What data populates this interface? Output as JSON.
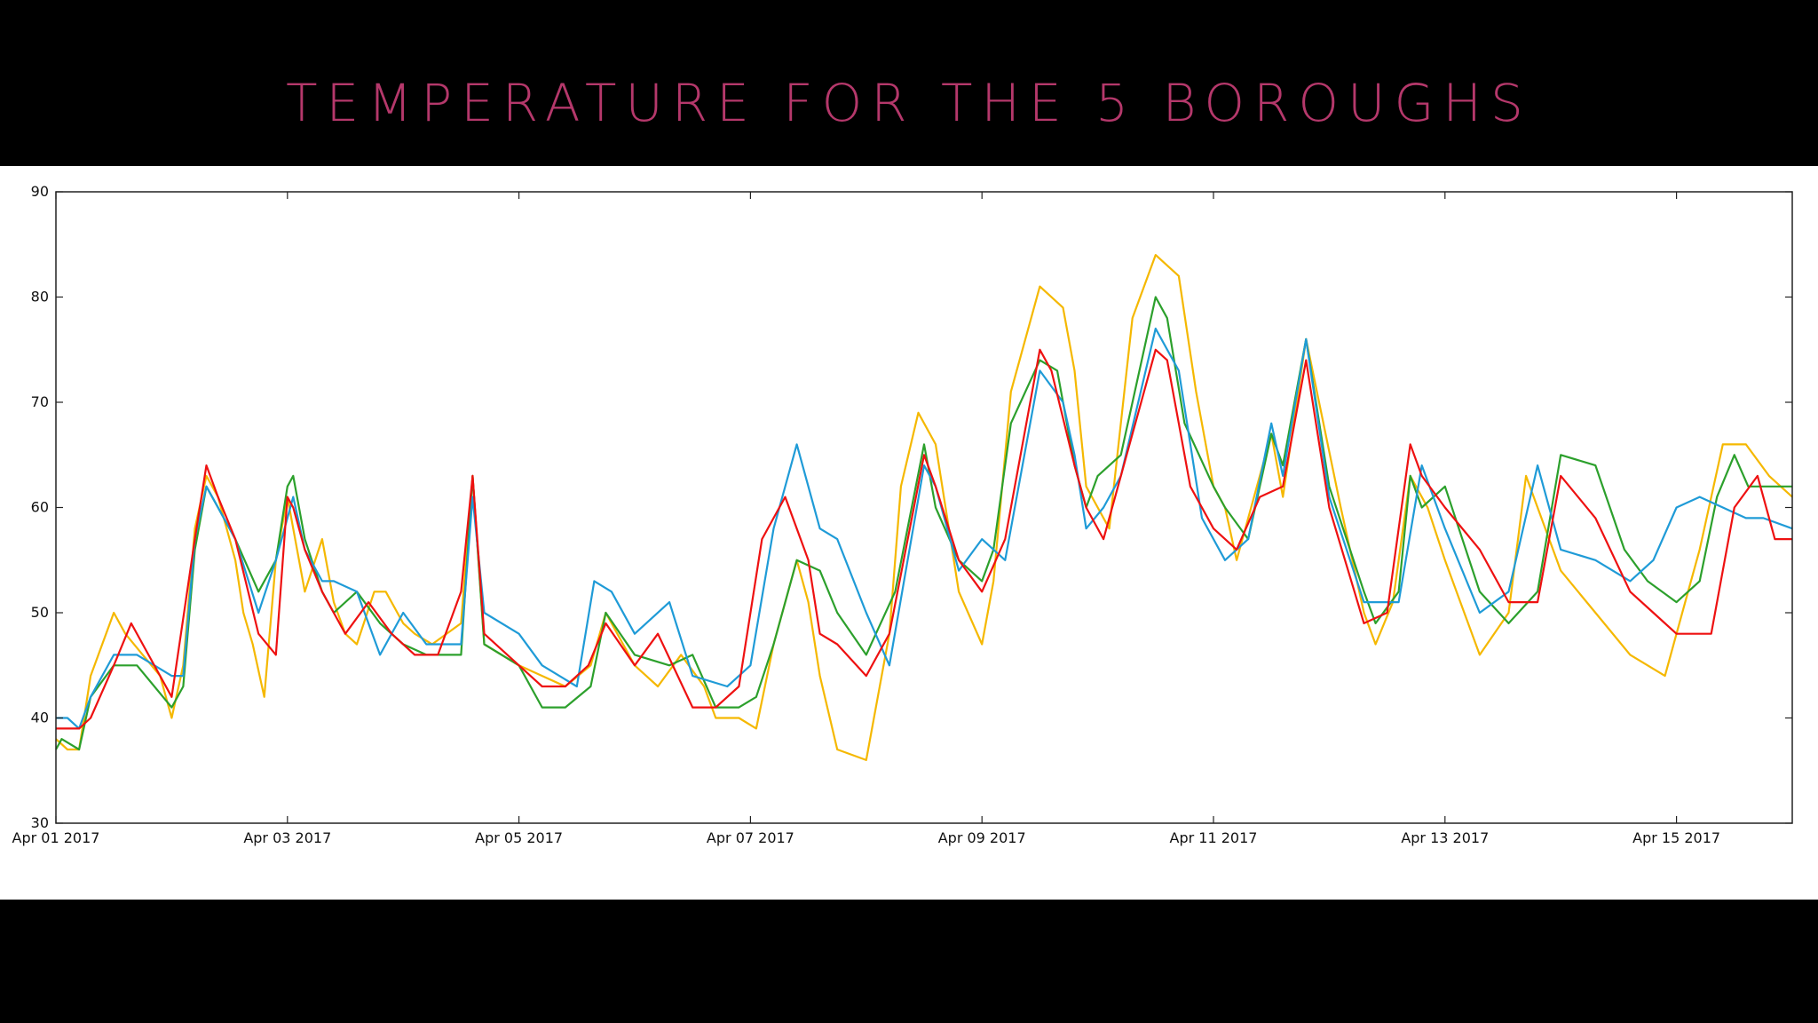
{
  "slide": {
    "title": "TEMPERATURE FOR THE 5 BOROUGHS",
    "title_color": "#b5386b",
    "background": "#000000",
    "panel_background": "#ffffff"
  },
  "chart_data": {
    "type": "line",
    "title": "TEMPERATURE FOR THE 5 BOROUGHS",
    "xlabel": "",
    "ylabel": "",
    "x_unit": "days since Apr 01 2017",
    "xlim": [
      0,
      15
    ],
    "ylim": [
      30,
      90
    ],
    "grid": false,
    "legend": "none",
    "yticks": [
      30,
      40,
      50,
      60,
      70,
      80,
      90
    ],
    "xticks": [
      {
        "x": 0,
        "label": "Apr 01 2017"
      },
      {
        "x": 2,
        "label": "Apr 03 2017"
      },
      {
        "x": 4,
        "label": "Apr 05 2017"
      },
      {
        "x": 6,
        "label": "Apr 07 2017"
      },
      {
        "x": 8,
        "label": "Apr 09 2017"
      },
      {
        "x": 10,
        "label": "Apr 11 2017"
      },
      {
        "x": 12,
        "label": "Apr 13 2017"
      },
      {
        "x": 14,
        "label": "Apr 15 2017"
      }
    ],
    "series": [
      {
        "name": "series-yellow",
        "color": "#f5b800",
        "x": [
          0,
          0.1,
          0.2,
          0.3,
          0.5,
          0.6,
          0.75,
          0.9,
          1.0,
          1.1,
          1.2,
          1.3,
          1.4,
          1.55,
          1.62,
          1.7,
          1.8,
          1.9,
          2.0,
          2.05,
          2.15,
          2.3,
          2.4,
          2.5,
          2.6,
          2.75,
          2.85,
          3.0,
          3.1,
          3.25,
          3.5,
          3.6,
          3.7,
          4.0,
          4.2,
          4.4,
          4.62,
          4.75,
          5.0,
          5.2,
          5.4,
          5.6,
          5.7,
          5.9,
          6.05,
          6.2,
          6.4,
          6.5,
          6.6,
          6.75,
          7.0,
          7.2,
          7.3,
          7.45,
          7.6,
          7.8,
          8.0,
          8.1,
          8.25,
          8.5,
          8.7,
          8.8,
          8.9,
          9.0,
          9.1,
          9.3,
          9.5,
          9.7,
          9.85,
          10.0,
          10.1,
          10.2,
          10.5,
          10.6,
          10.8,
          11.1,
          11.3,
          11.4,
          11.55,
          11.7,
          11.75,
          11.85,
          12.0,
          12.3,
          12.55,
          12.7,
          12.8,
          13.0,
          13.3,
          13.6,
          13.9,
          14.1,
          14.2,
          14.4,
          14.6,
          14.8,
          14.9,
          15.0
        ],
        "values": [
          38,
          37,
          37,
          44,
          50,
          48,
          46,
          44,
          40,
          45,
          58,
          63,
          61,
          55,
          50,
          47,
          42,
          55,
          61,
          58,
          52,
          57,
          51,
          48,
          47,
          52,
          52,
          49,
          48,
          47,
          49,
          63,
          47,
          45,
          44,
          43,
          45,
          50,
          45,
          43,
          46,
          43,
          40,
          40,
          39,
          47,
          55,
          51,
          44,
          37,
          36,
          48,
          62,
          69,
          66,
          52,
          47,
          53,
          71,
          81,
          79,
          73,
          62,
          60,
          58,
          78,
          84,
          82,
          71,
          62,
          60,
          55,
          67,
          61,
          76,
          60,
          50,
          47,
          51,
          63,
          62,
          60,
          55,
          46,
          50,
          63,
          60,
          54,
          50,
          46,
          44,
          52,
          56,
          66,
          66,
          63,
          62,
          61
        ]
      },
      {
        "name": "series-green",
        "color": "#2ca02c",
        "x": [
          0,
          0.05,
          0.2,
          0.3,
          0.5,
          0.7,
          1.0,
          1.1,
          1.2,
          1.3,
          1.4,
          1.55,
          1.75,
          1.9,
          2.0,
          2.05,
          2.15,
          2.3,
          2.4,
          2.6,
          2.8,
          3.0,
          3.2,
          3.5,
          3.6,
          3.7,
          4.0,
          4.2,
          4.4,
          4.62,
          4.75,
          5.0,
          5.3,
          5.5,
          5.7,
          5.9,
          6.05,
          6.2,
          6.4,
          6.6,
          6.75,
          7.0,
          7.25,
          7.5,
          7.6,
          7.8,
          8.0,
          8.1,
          8.25,
          8.5,
          8.65,
          8.8,
          8.9,
          9.0,
          9.2,
          9.5,
          9.6,
          9.75,
          10.0,
          10.1,
          10.3,
          10.5,
          10.6,
          10.8,
          11.0,
          11.3,
          11.4,
          11.6,
          11.7,
          11.8,
          12.0,
          12.3,
          12.55,
          12.8,
          13.0,
          13.3,
          13.55,
          13.75,
          14.0,
          14.2,
          14.35,
          14.5,
          14.62,
          14.75,
          15.0
        ],
        "values": [
          37,
          38,
          37,
          42,
          45,
          45,
          41,
          43,
          56,
          62,
          60,
          57,
          52,
          55,
          62,
          63,
          57,
          52,
          50,
          52,
          49,
          47,
          46,
          46,
          63,
          47,
          45,
          41,
          41,
          43,
          50,
          46,
          45,
          46,
          41,
          41,
          42,
          47,
          55,
          54,
          50,
          46,
          52,
          66,
          60,
          55,
          53,
          56,
          68,
          74,
          73,
          64,
          60,
          63,
          65,
          80,
          78,
          68,
          62,
          60,
          57,
          67,
          64,
          76,
          62,
          52,
          49,
          52,
          63,
          60,
          62,
          52,
          49,
          52,
          65,
          64,
          56,
          53,
          51,
          53,
          61,
          65,
          62,
          62,
          62
        ]
      },
      {
        "name": "series-blue",
        "color": "#1f9bd7",
        "x": [
          0,
          0.1,
          0.2,
          0.3,
          0.5,
          0.7,
          1.0,
          1.1,
          1.2,
          1.3,
          1.4,
          1.55,
          1.75,
          1.9,
          2.05,
          2.15,
          2.3,
          2.4,
          2.6,
          2.8,
          3.0,
          3.2,
          3.5,
          3.6,
          3.7,
          4.0,
          4.2,
          4.5,
          4.65,
          4.8,
          5.0,
          5.3,
          5.5,
          5.8,
          6.0,
          6.2,
          6.4,
          6.6,
          6.75,
          7.0,
          7.2,
          7.5,
          7.6,
          7.8,
          8.0,
          8.2,
          8.5,
          8.7,
          8.8,
          8.9,
          9.05,
          9.2,
          9.5,
          9.7,
          9.9,
          10.1,
          10.3,
          10.5,
          10.6,
          10.8,
          11.0,
          11.3,
          11.6,
          11.8,
          12.0,
          12.3,
          12.55,
          12.8,
          13.0,
          13.3,
          13.6,
          13.8,
          14.0,
          14.2,
          14.4,
          14.6,
          14.75,
          15.0
        ],
        "values": [
          40,
          40,
          39,
          42,
          46,
          46,
          44,
          44,
          57,
          62,
          60,
          57,
          50,
          55,
          61,
          56,
          53,
          53,
          52,
          46,
          50,
          47,
          47,
          61,
          50,
          48,
          45,
          43,
          53,
          52,
          48,
          51,
          44,
          43,
          45,
          58,
          66,
          58,
          57,
          50,
          45,
          64,
          62,
          54,
          57,
          55,
          73,
          70,
          65,
          58,
          60,
          63,
          77,
          73,
          59,
          55,
          57,
          68,
          63,
          76,
          61,
          51,
          51,
          64,
          58,
          50,
          52,
          64,
          56,
          55,
          53,
          55,
          60,
          61,
          60,
          59,
          59,
          58
        ]
      },
      {
        "name": "series-red",
        "color": "#ee1111",
        "x": [
          0,
          0.2,
          0.3,
          0.5,
          0.65,
          0.8,
          1.0,
          1.2,
          1.3,
          1.4,
          1.55,
          1.75,
          1.9,
          2.0,
          2.05,
          2.15,
          2.3,
          2.5,
          2.7,
          2.9,
          3.1,
          3.3,
          3.5,
          3.6,
          3.7,
          4.0,
          4.2,
          4.4,
          4.6,
          4.75,
          5.0,
          5.2,
          5.5,
          5.7,
          5.9,
          6.1,
          6.3,
          6.5,
          6.6,
          6.75,
          7.0,
          7.2,
          7.5,
          7.6,
          7.8,
          8.0,
          8.2,
          8.5,
          8.6,
          8.8,
          8.9,
          9.05,
          9.2,
          9.5,
          9.6,
          9.7,
          9.8,
          10.0,
          10.2,
          10.4,
          10.6,
          10.8,
          11.0,
          11.3,
          11.5,
          11.7,
          11.8,
          12.0,
          12.3,
          12.55,
          12.8,
          13.0,
          13.3,
          13.6,
          13.8,
          14.0,
          14.3,
          14.5,
          14.7,
          14.85,
          15.0
        ],
        "values": [
          39,
          39,
          40,
          45,
          49,
          46,
          42,
          57,
          64,
          61,
          57,
          48,
          46,
          61,
          60,
          56,
          52,
          48,
          51,
          48,
          46,
          46,
          52,
          63,
          48,
          45,
          43,
          43,
          45,
          49,
          45,
          48,
          41,
          41,
          43,
          57,
          61,
          55,
          48,
          47,
          44,
          48,
          65,
          62,
          55,
          52,
          57,
          75,
          73,
          64,
          60,
          57,
          63,
          75,
          74,
          68,
          62,
          58,
          56,
          61,
          62,
          74,
          60,
          49,
          50,
          66,
          63,
          60,
          56,
          51,
          51,
          63,
          59,
          52,
          50,
          48,
          48,
          60,
          63,
          57,
          57
        ]
      }
    ]
  }
}
